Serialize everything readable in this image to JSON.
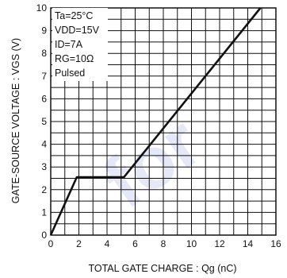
{
  "chart_data": {
    "type": "line",
    "xlabel": "TOTAL GATE CHARGE : Qg (nC)",
    "ylabel": "GATE-SOURCE VOLTAGE : VGS (V)",
    "xlim": [
      0,
      16
    ],
    "ylim": [
      0,
      10
    ],
    "x_ticks": [
      "0",
      "2",
      "4",
      "6",
      "8",
      "10",
      "12",
      "14",
      "16"
    ],
    "y_ticks": [
      "0",
      "1",
      "2",
      "3",
      "4",
      "5",
      "6",
      "7",
      "8",
      "9",
      "10"
    ],
    "grid": true,
    "series": [
      {
        "x": [
          0,
          1.85,
          5.2,
          14.9
        ],
        "y": [
          0,
          2.55,
          2.55,
          10
        ]
      }
    ],
    "conditions": [
      "Ta=25°C",
      "VDD=15V",
      "ID=7A",
      "RG=10Ω",
      "Pulsed"
    ],
    "watermark": "for",
    "colors": {
      "line": "#111111",
      "grid": "#111111",
      "watermark": "#2a4dbf"
    }
  }
}
